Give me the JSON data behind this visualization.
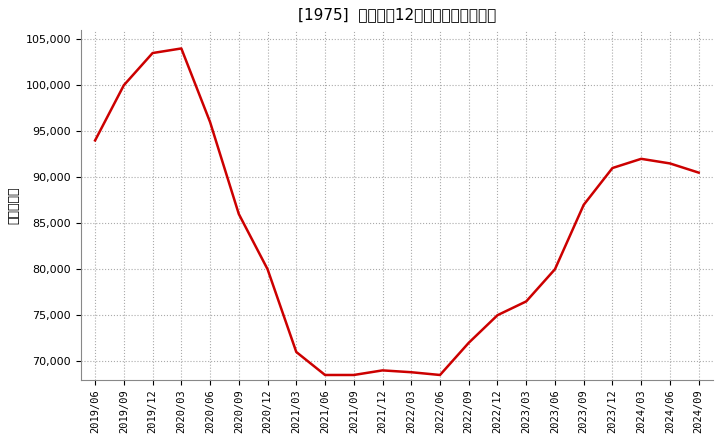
{
  "title": "[1975]  売上高の12か月移動合計の推移",
  "ylabel": "（百万円）",
  "line_color": "#cc0000",
  "line_width": 1.8,
  "background_color": "#ffffff",
  "plot_bg_color": "#ffffff",
  "grid_color": "#aaaaaa",
  "ylim": [
    68000,
    106000
  ],
  "yticks": [
    70000,
    75000,
    80000,
    85000,
    90000,
    95000,
    100000,
    105000
  ],
  "dates": [
    "2019/06",
    "2019/09",
    "2019/12",
    "2020/03",
    "2020/06",
    "2020/09",
    "2020/12",
    "2021/03",
    "2021/06",
    "2021/09",
    "2021/12",
    "2022/03",
    "2022/06",
    "2022/09",
    "2022/12",
    "2023/03",
    "2023/06",
    "2023/09",
    "2023/12",
    "2024/03",
    "2024/06",
    "2024/09"
  ],
  "values": [
    94000,
    100000,
    103500,
    104000,
    96000,
    86000,
    80000,
    71000,
    68500,
    68500,
    69000,
    68800,
    68500,
    72000,
    75000,
    76500,
    80000,
    87000,
    91000,
    92000,
    91500,
    90500
  ]
}
